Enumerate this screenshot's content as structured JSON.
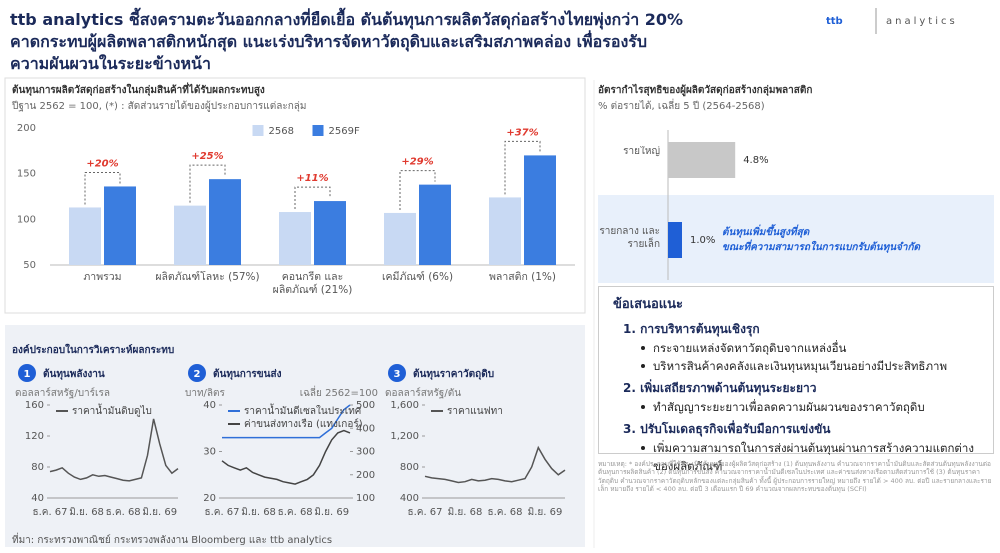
{
  "header": {
    "title": [
      "ttb analytics ชี้สงครามตะวันออกกลางที่ยืดเยื้อ ดันต้นทุนการผลิตวัสดุก่อสร้างไทยพุ่งกว่า 20%",
      "คาดกระทบผู้ผลิตพลาสติกหนักสุด แนะเร่งบริหารจัดหาวัตถุดิบและเสริมสภาพคล่อง เพื่อรองรับ",
      "ความผันผวนในระยะข้างหน้า"
    ],
    "logo": "ttb",
    "logo_text": "analytics"
  },
  "section_title": "องค์ประกอบในการวิเคราะห์ผลกระทบ",
  "chart_data": [
    {
      "type": "bar",
      "title": "ต้นทุนการผลิตวัสดุก่อสร้างในกลุ่มสินค้าที่ได้รับผลกระทบสูง",
      "subtitle": "ปีฐาน 2562 = 100, (*) : สัดส่วนรายได้ของผู้ประกอบการแต่ละกลุ่ม",
      "categories": [
        "ภาพรวม",
        "ผลิตภัณฑ์โลหะ (57%)",
        "คอนกรีต และผลิตภัณฑ์ (21%)",
        "เคมีภัณฑ์ (6%)",
        "พลาสติก (1%)"
      ],
      "series": [
        {
          "name": "2568",
          "color": "#c8d9f3",
          "values": [
            113,
            115,
            108,
            107,
            124
          ]
        },
        {
          "name": "2569F",
          "color": "#3b7de0",
          "values": [
            136,
            144,
            120,
            138,
            170
          ]
        }
      ],
      "annotations": [
        "+20%",
        "+25%",
        "+11%",
        "+29%",
        "+37%"
      ],
      "ylim": [
        50,
        200
      ],
      "yticks": [
        50,
        100,
        150,
        200
      ],
      "legend": "top"
    },
    {
      "type": "hbar",
      "title": "อัตรากำไรสุทธิของผู้ผลิตวัสดุก่อสร้างกลุ่มพลาสติก",
      "subtitle": "% ต่อรายได้, เฉลี่ย 5 ปี (2564-2568)",
      "categories": [
        "รายใหญ่",
        "รายกลาง และรายเล็ก"
      ],
      "values": [
        4.8,
        1.0
      ],
      "value_labels": [
        "4.8%",
        "1.0%"
      ],
      "colors": [
        "#c8c8c8",
        "#1f5fd6"
      ],
      "annotation": [
        "ต้นทุนเพิ่มขึ้นสูงที่สุด",
        "ขณะที่ความสามารถในการแบกรับต้นทุนจำกัด"
      ]
    },
    {
      "type": "line",
      "number": "1",
      "title": "ต้นทุนพลังงาน",
      "unit": "ดอลลาร์สหรัฐ/บาร์เรล",
      "x": [
        "ธ.ค. 67",
        null,
        null,
        null,
        null,
        null,
        "มิ.ย. 68",
        null,
        null,
        null,
        null,
        null,
        "ธ.ค. 68",
        null,
        null,
        null,
        null,
        null,
        "มิ.ย. 69",
        null,
        null,
        null
      ],
      "series": [
        {
          "name": "ราคาน้ำมันดิบดูไบ",
          "color": "#555555",
          "values": [
            74,
            76,
            79,
            72,
            67,
            64,
            66,
            70,
            68,
            69,
            67,
            65,
            63,
            62,
            64,
            66,
            95,
            142,
            110,
            82,
            72,
            78
          ]
        }
      ],
      "ylim": [
        40,
        160
      ],
      "yticks": [
        40,
        80,
        120,
        160
      ]
    },
    {
      "type": "line",
      "number": "2",
      "title": "ต้นทุนการขนส่ง",
      "unit": "บาท/ลิตร",
      "note": "เฉลี่ย 2562=100",
      "x": [
        "ธ.ค. 67",
        null,
        null,
        null,
        null,
        null,
        "มิ.ย. 68",
        null,
        null,
        null,
        null,
        null,
        "ธ.ค. 68",
        null,
        null,
        null,
        null,
        null,
        "มิ.ย. 69",
        null,
        null,
        null
      ],
      "series": [
        {
          "name": "ราคาน้ำมันดีเซลในประเทศ",
          "color": "#2f6fd8",
          "values": [
            33,
            33,
            33,
            33,
            33,
            33,
            33,
            33,
            33,
            33,
            33,
            33,
            33,
            33,
            33,
            33,
            33,
            34,
            35,
            37,
            39,
            40
          ]
        },
        {
          "name": "ค่าขนส่งทางเรือ (แทงเกอร์)",
          "color": "#444444",
          "axis": "y2",
          "values": [
            260,
            240,
            230,
            220,
            230,
            210,
            200,
            190,
            185,
            180,
            170,
            165,
            160,
            170,
            180,
            200,
            240,
            300,
            350,
            380,
            390,
            380
          ]
        }
      ],
      "ylim": [
        20,
        40
      ],
      "yticks": [
        20,
        30,
        40
      ],
      "y2lim": [
        100,
        500
      ],
      "y2ticks": [
        100,
        200,
        300,
        400,
        500
      ]
    },
    {
      "type": "line",
      "number": "3",
      "title": "ต้นทุนราคาวัตถุดิบ",
      "unit": "ดอลลาร์สหรัฐ/ตัน",
      "x": [
        "ธ.ค. 67",
        null,
        null,
        null,
        null,
        null,
        "มิ.ย. 68",
        null,
        null,
        null,
        null,
        null,
        "ธ.ค. 68",
        null,
        null,
        null,
        null,
        null,
        "มิ.ย. 69",
        null,
        null,
        null
      ],
      "series": [
        {
          "name": "ราคาแนฟทา",
          "color": "#555555",
          "values": [
            680,
            660,
            650,
            640,
            620,
            600,
            610,
            640,
            620,
            630,
            650,
            640,
            620,
            610,
            630,
            650,
            800,
            1050,
            900,
            780,
            700,
            760
          ]
        }
      ],
      "ylim": [
        400,
        1600
      ],
      "yticks": [
        400,
        800,
        {
          "value": 1200,
          "label": "1,200"
        },
        {
          "value": 1600,
          "label": "1,600"
        }
      ]
    }
  ],
  "recommendations": {
    "title": "ข้อเสนอแนะ",
    "items": [
      {
        "number": "1.",
        "title": "การบริหารต้นทุนเชิงรุก",
        "bullets": [
          "กระจายแหล่งจัดหาวัตถุดิบจากแหล่งอื่น",
          "บริหารสินค้าคงคลังและเงินทุนหมุนเวียนอย่างมีประสิทธิภาพ"
        ]
      },
      {
        "number": "2.",
        "title": "เพิ่มเสถียรภาพด้านต้นทุนระยะยาว",
        "bullets": [
          "ทำสัญญาระยะยาวเพื่อลดความผันผวนของราคาวัตถุดิบ"
        ]
      },
      {
        "number": "3.",
        "title": "ปรับโมเดลธุรกิจเพื่อรับมือการแข่งขัน",
        "bullets": [
          "เพิ่มความสามารถในการส่งผ่านต้นทุนผ่านการสร้างความแตกต่างของผลิตภัณฑ์"
        ]
      }
    ]
  },
  "note": "หมายเหตุ: * องค์ประกอบที่ใช้ประเมินต้นทุนของผู้ผลิตวัสดุก่อสร้าง (1) ต้นทุนพลังงาน คำนวณจากราคาน้ำมันดิบและสัดส่วนต้นทุนพลังงานต่อต้นทุนการผลิตสินค้า (2) ต้นทุนการขนส่ง คำนวณจากราคาน้ำมันดีเซลในประเทศ และค่าขนส่งทางเรือตามสัดส่วนการใช้ (3) ต้นทุนราคาวัตถุดิบ คำนวณจากราคาวัตถุดิบหลักของแต่ละกลุ่มสินค้า ทั้งนี้ ผู้ประกอบการรายใหญ่ หมายถึง รายได้ > 400 ลบ. ต่อปี และรายกลางและรายเล็ก หมายถึง รายได้ < 400 ลบ. ต่อปี 3 เดือนแรก ปี 69 คำนวณจากผลกระทบของต้นทุน (SCFI)",
  "source": "ที่มา: กระทรวงพาณิชย์ กระทรวงพลังงาน Bloomberg และ ttb analytics"
}
